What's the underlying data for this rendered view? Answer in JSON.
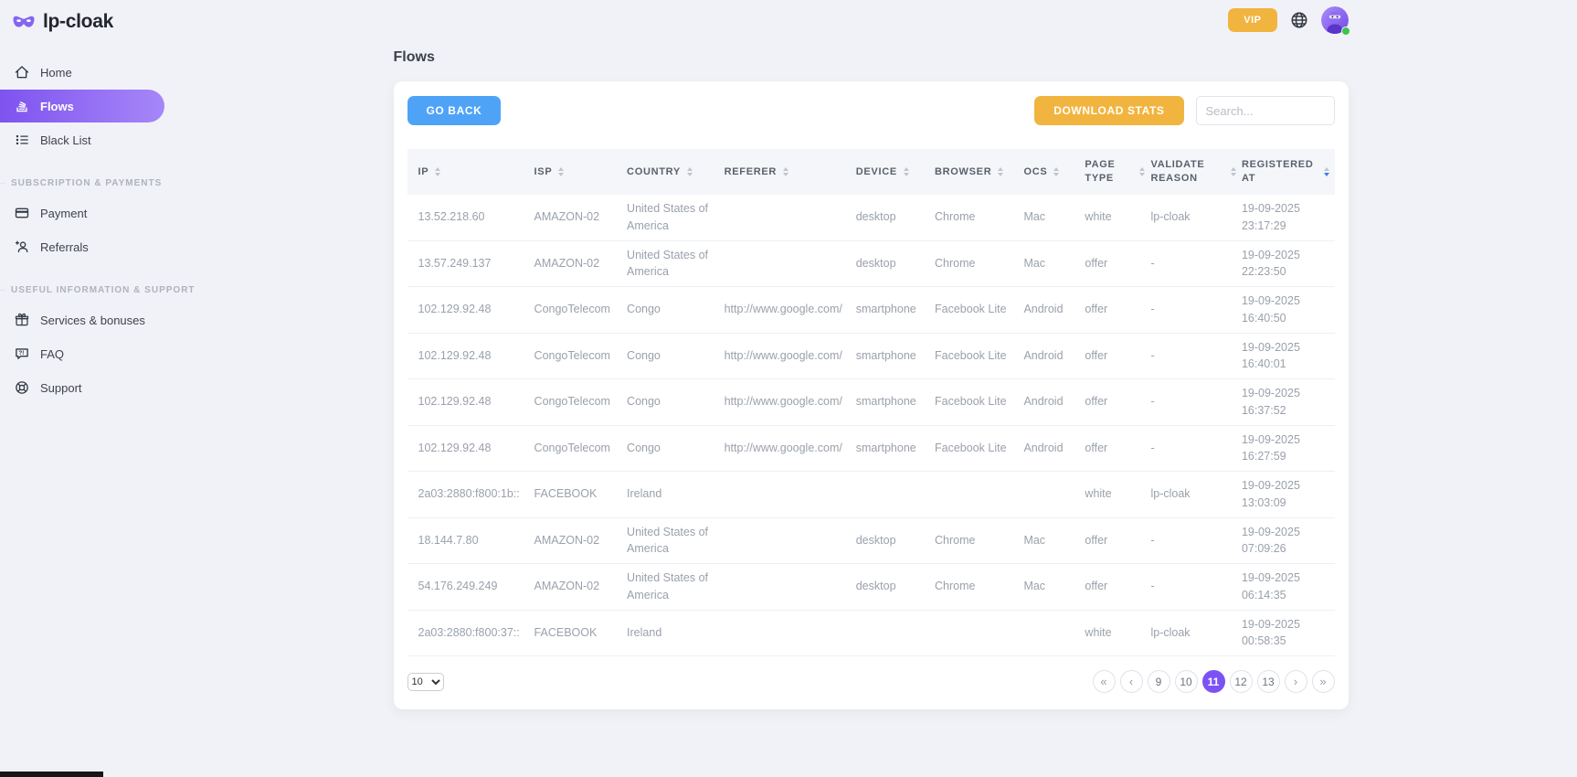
{
  "brand": {
    "name": "lp-cloak"
  },
  "topbar": {
    "vip_label": "VIP",
    "globe_icon": "globe-icon",
    "avatar_status": "online"
  },
  "sidebar": {
    "groups": [
      {
        "header": "",
        "items": [
          {
            "id": "home",
            "label": "Home",
            "icon": "home-icon",
            "active": false
          },
          {
            "id": "flows",
            "label": "Flows",
            "icon": "flows-icon",
            "active": true
          },
          {
            "id": "black-list",
            "label": "Black List",
            "icon": "black-list-icon",
            "active": false
          }
        ]
      },
      {
        "header": "SUBSCRIPTION & PAYMENTS",
        "items": [
          {
            "id": "payment",
            "label": "Payment",
            "icon": "payment-icon",
            "active": false
          },
          {
            "id": "referrals",
            "label": "Referrals",
            "icon": "referrals-icon",
            "active": false
          }
        ]
      },
      {
        "header": "USEFUL INFORMATION & SUPPORT",
        "items": [
          {
            "id": "services-bonuses",
            "label": "Services & bonuses",
            "icon": "gift-icon",
            "active": false
          },
          {
            "id": "faq",
            "label": "FAQ",
            "icon": "faq-icon",
            "active": false
          },
          {
            "id": "support",
            "label": "Support",
            "icon": "support-icon",
            "active": false
          }
        ]
      }
    ]
  },
  "main": {
    "page_title": "Flows",
    "toolbar": {
      "go_back_label": "GO BACK",
      "download_stats_label": "DOWNLOAD STATS",
      "search_placeholder": "Search..."
    },
    "table": {
      "columns": [
        {
          "label": "IP",
          "key": "ip",
          "sort_active": false
        },
        {
          "label": "ISP",
          "key": "isp",
          "sort_active": false
        },
        {
          "label": "COUNTRY",
          "key": "country",
          "sort_active": false
        },
        {
          "label": "REFERER",
          "key": "referer",
          "sort_active": false
        },
        {
          "label": "DEVICE",
          "key": "device",
          "sort_active": false
        },
        {
          "label": "BROWSER",
          "key": "browser",
          "sort_active": false
        },
        {
          "label": "OCS",
          "key": "ocs",
          "sort_active": false
        },
        {
          "label": "PAGE TYPE",
          "key": "page_type",
          "sort_active": false
        },
        {
          "label": "VALIDATE REASON",
          "key": "validate_reason",
          "sort_active": false
        },
        {
          "label": "REGISTERED AT",
          "key": "registered_at",
          "sort_active": true
        }
      ],
      "rows": [
        {
          "ip": "13.52.218.60",
          "isp": "AMAZON-02",
          "country": "United States of America",
          "referer": "",
          "device": "desktop",
          "browser": "Chrome",
          "ocs": "Mac",
          "page_type": "white",
          "validate_reason": "lp-cloak",
          "registered_at": "19-09-2025 23:17:29"
        },
        {
          "ip": "13.57.249.137",
          "isp": "AMAZON-02",
          "country": "United States of America",
          "referer": "",
          "device": "desktop",
          "browser": "Chrome",
          "ocs": "Mac",
          "page_type": "offer",
          "validate_reason": "-",
          "registered_at": "19-09-2025 22:23:50"
        },
        {
          "ip": "102.129.92.48",
          "isp": "CongoTelecom",
          "country": "Congo",
          "referer": "http://www.google.com/",
          "device": "smartphone",
          "browser": "Facebook Lite",
          "ocs": "Android",
          "page_type": "offer",
          "validate_reason": "-",
          "registered_at": "19-09-2025 16:40:50"
        },
        {
          "ip": "102.129.92.48",
          "isp": "CongoTelecom",
          "country": "Congo",
          "referer": "http://www.google.com/",
          "device": "smartphone",
          "browser": "Facebook Lite",
          "ocs": "Android",
          "page_type": "offer",
          "validate_reason": "-",
          "registered_at": "19-09-2025 16:40:01"
        },
        {
          "ip": "102.129.92.48",
          "isp": "CongoTelecom",
          "country": "Congo",
          "referer": "http://www.google.com/",
          "device": "smartphone",
          "browser": "Facebook Lite",
          "ocs": "Android",
          "page_type": "offer",
          "validate_reason": "-",
          "registered_at": "19-09-2025 16:37:52"
        },
        {
          "ip": "102.129.92.48",
          "isp": "CongoTelecom",
          "country": "Congo",
          "referer": "http://www.google.com/",
          "device": "smartphone",
          "browser": "Facebook Lite",
          "ocs": "Android",
          "page_type": "offer",
          "validate_reason": "-",
          "registered_at": "19-09-2025 16:27:59"
        },
        {
          "ip": "2a03:2880:f800:1b::",
          "isp": "FACEBOOK",
          "country": "Ireland",
          "referer": "",
          "device": "",
          "browser": "",
          "ocs": "",
          "page_type": "white",
          "validate_reason": "lp-cloak",
          "registered_at": "19-09-2025 13:03:09"
        },
        {
          "ip": "18.144.7.80",
          "isp": "AMAZON-02",
          "country": "United States of America",
          "referer": "",
          "device": "desktop",
          "browser": "Chrome",
          "ocs": "Mac",
          "page_type": "offer",
          "validate_reason": "-",
          "registered_at": "19-09-2025 07:09:26"
        },
        {
          "ip": "54.176.249.249",
          "isp": "AMAZON-02",
          "country": "United States of America",
          "referer": "",
          "device": "desktop",
          "browser": "Chrome",
          "ocs": "Mac",
          "page_type": "offer",
          "validate_reason": "-",
          "registered_at": "19-09-2025 06:14:35"
        },
        {
          "ip": "2a03:2880:f800:37::",
          "isp": "FACEBOOK",
          "country": "Ireland",
          "referer": "",
          "device": "",
          "browser": "",
          "ocs": "",
          "page_type": "white",
          "validate_reason": "lp-cloak",
          "registered_at": "19-09-2025 00:58:35"
        }
      ]
    },
    "pagination": {
      "page_size": "10",
      "page_size_options": [
        "10"
      ],
      "first": "«",
      "prev": "‹",
      "next": "›",
      "last": "»",
      "pages": [
        "9",
        "10",
        "11",
        "12",
        "13"
      ],
      "active_page": "11"
    }
  },
  "colors": {
    "accent_purple": "#7c52f5",
    "sidebar_active_gradient_start": "#7e53ef",
    "sidebar_active_gradient_end": "#a687f8",
    "primary_blue": "#4fa3f7",
    "warning_orange": "#f1b43f",
    "online_green": "#3fc24c",
    "active_sort_blue": "#3e7bf0",
    "background": "#f1f2f7"
  }
}
